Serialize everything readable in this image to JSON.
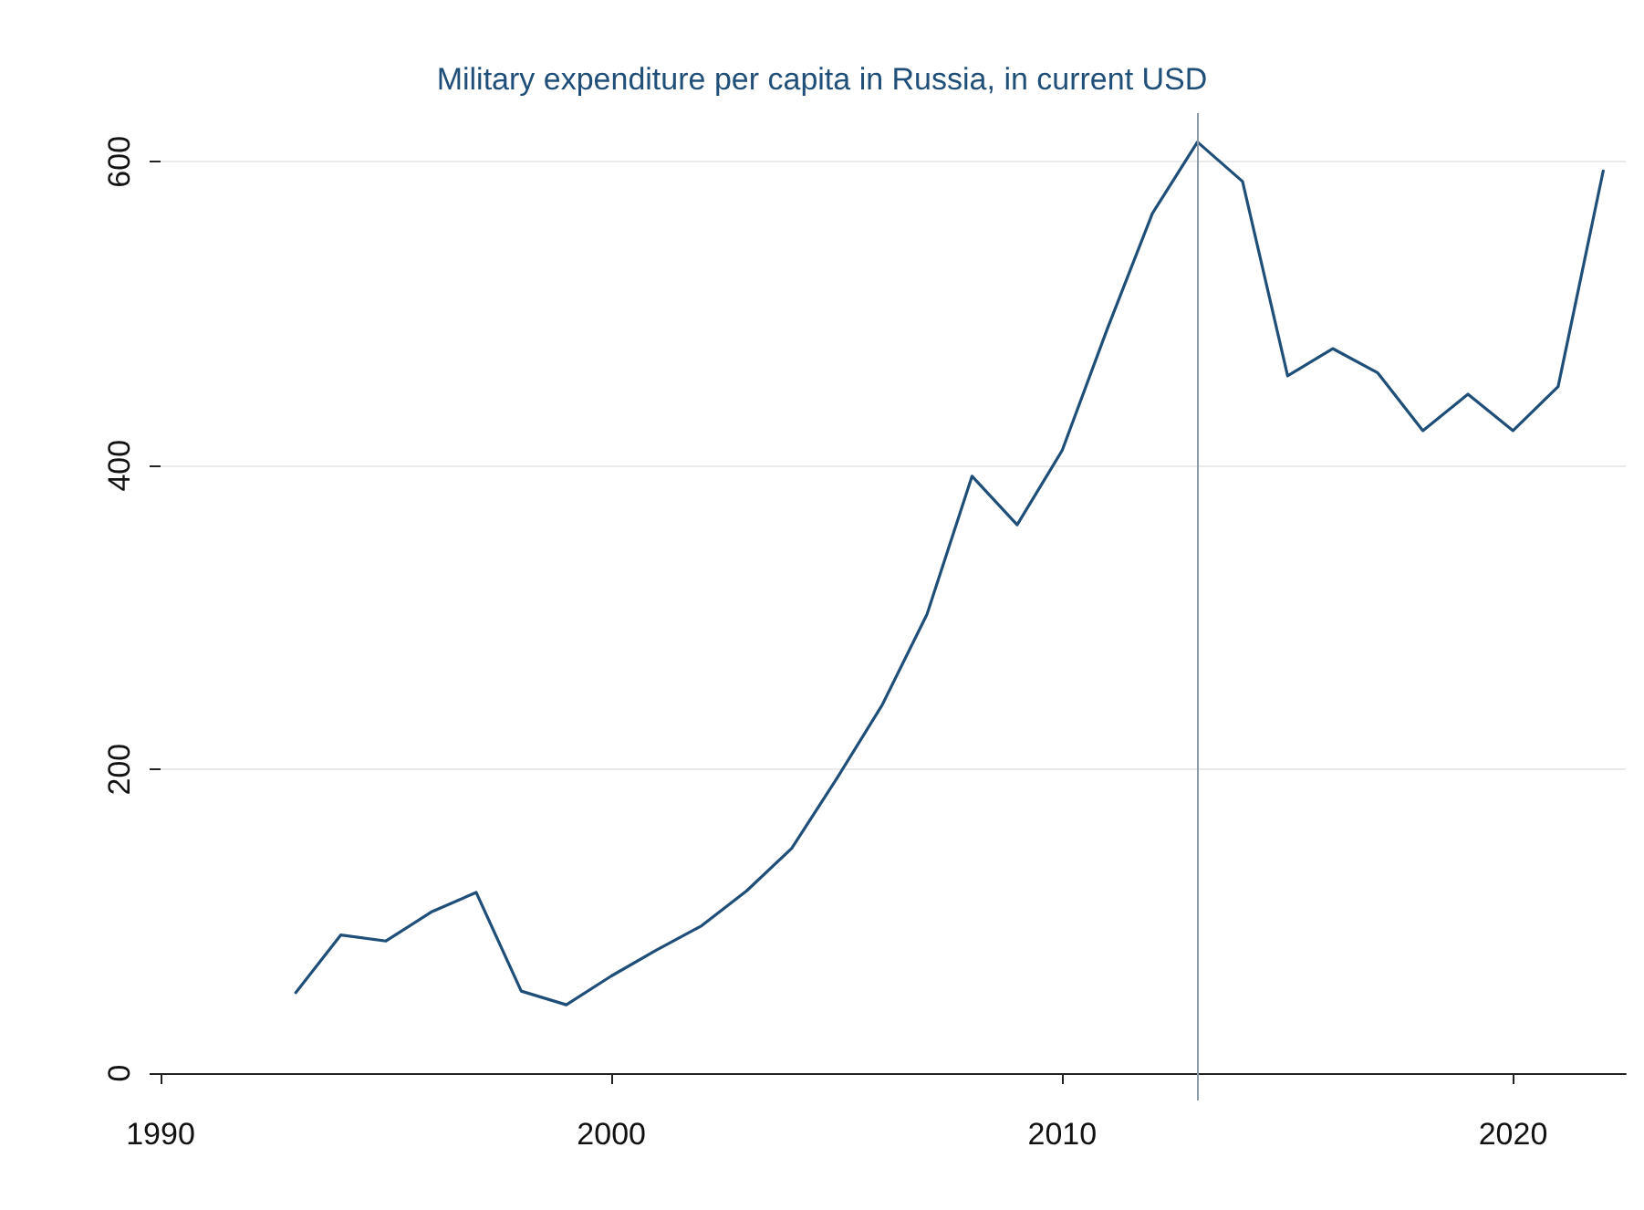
{
  "chart_data": {
    "type": "line",
    "title": "Military expenditure per capita in Russia, in current USD",
    "x": [
      1993,
      1994,
      1995,
      1996,
      1997,
      1998,
      1999,
      2000,
      2001,
      2002,
      2003,
      2004,
      2005,
      2006,
      2007,
      2008,
      2009,
      2010,
      2011,
      2012,
      2013,
      2014,
      2015,
      2016,
      2017,
      2018,
      2019,
      2020,
      2021,
      2022
    ],
    "series": [
      {
        "color": "#1f4e79",
        "values": [
          53,
          91,
          87,
          106,
          119,
          54,
          45,
          64,
          81,
          97,
          120,
          148,
          194,
          242,
          302,
          393,
          361,
          410,
          490,
          566,
          613,
          587,
          459,
          477,
          461,
          423,
          447,
          423,
          452,
          594
        ]
      }
    ],
    "xlim": [
      1990,
      2022.5
    ],
    "xticks": [
      1990,
      2000,
      2010,
      2020
    ],
    "ylim": [
      -18,
      632
    ],
    "yticks": [
      0,
      200,
      400,
      600
    ],
    "grid": "y",
    "marker": "none",
    "line_style": "solid",
    "ref_lines": [
      {
        "axis": "x",
        "value": 2013,
        "color": "#8a9aa6"
      }
    ]
  }
}
